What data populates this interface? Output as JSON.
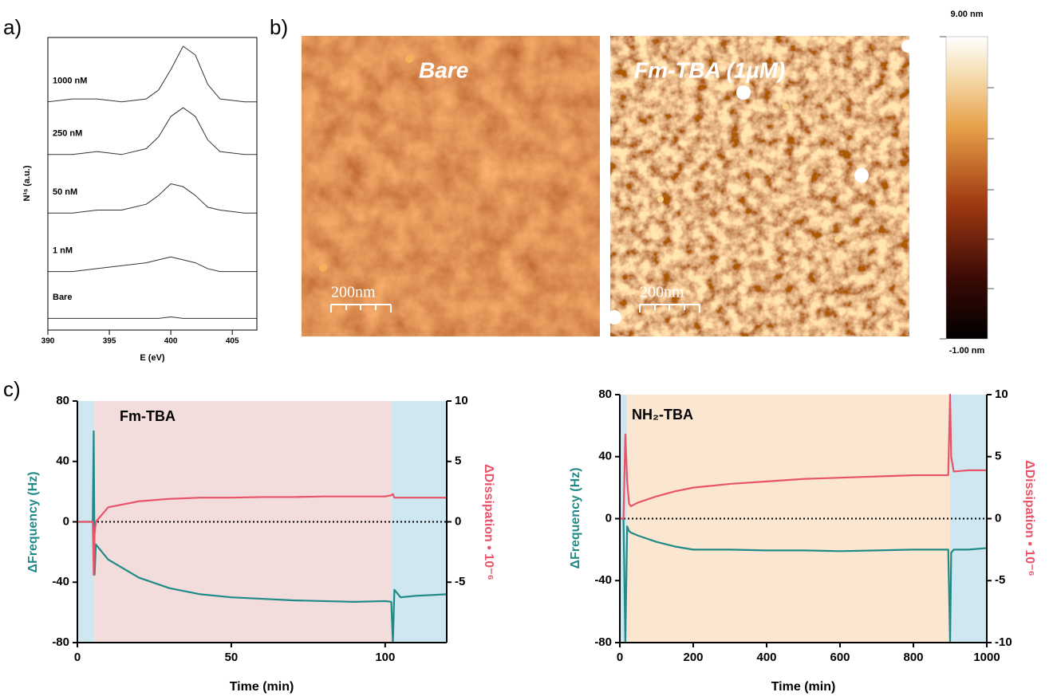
{
  "panel_labels": [
    "a)",
    "b)",
    "c)"
  ],
  "afm": {
    "images": [
      {
        "label": "Bare",
        "scale_bar": "200nm"
      },
      {
        "label": "Fm-TBA (1µM)",
        "scale_bar": "200nm"
      }
    ],
    "colorbar": {
      "max_label": "9.00 nm",
      "min_label": "-1.00 nm"
    }
  },
  "chart_data": [
    {
      "type": "line",
      "xlabel": "E (eV)",
      "ylabel": "N¹ˢ (a.u.)",
      "x": [
        390,
        392,
        394,
        396,
        398,
        399,
        400,
        401,
        402,
        403,
        404,
        406,
        407
      ],
      "xlim": [
        390,
        407
      ],
      "xticks": [
        390,
        395,
        400,
        405
      ],
      "ylim": [
        0,
        10
      ],
      "series": [
        {
          "name": "1000 nM",
          "color": "#333333",
          "values": [
            7.8,
            7.9,
            7.9,
            7.8,
            7.9,
            8.2,
            8.9,
            9.7,
            9.4,
            8.4,
            7.9,
            7.8,
            7.8
          ]
        },
        {
          "name": "250 nM",
          "color": "#333333",
          "values": [
            6.0,
            6.0,
            6.1,
            6.0,
            6.2,
            6.6,
            7.3,
            7.6,
            7.3,
            6.5,
            6.1,
            6.0,
            6.0
          ]
        },
        {
          "name": "50 nM",
          "color": "#333333",
          "values": [
            4.0,
            4.0,
            4.1,
            4.1,
            4.3,
            4.6,
            5.0,
            4.9,
            4.6,
            4.2,
            4.1,
            4.0,
            4.0
          ]
        },
        {
          "name": "1 nM",
          "color": "#333333",
          "values": [
            2.0,
            2.0,
            2.1,
            2.2,
            2.3,
            2.4,
            2.5,
            2.4,
            2.3,
            2.1,
            2.0,
            2.0,
            2.0
          ]
        },
        {
          "name": "Bare",
          "color": "#333333",
          "values": [
            0.4,
            0.4,
            0.4,
            0.4,
            0.4,
            0.4,
            0.45,
            0.4,
            0.4,
            0.4,
            0.4,
            0.4,
            0.4
          ]
        }
      ]
    },
    {
      "type": "line",
      "title": "Fm-TBA",
      "xlabel": "Time (min)",
      "ylabel": "ΔFrequency (Hz)",
      "y2label": "ΔDissipation • 10⁻⁶",
      "x": [
        0,
        5,
        5.3,
        5.6,
        6,
        10,
        20,
        30,
        40,
        50,
        60,
        70,
        80,
        90,
        100,
        102,
        102.5,
        103,
        105,
        110,
        120
      ],
      "xlim": [
        0,
        120
      ],
      "xticks": [
        0,
        50,
        100
      ],
      "ylim": [
        -80,
        80
      ],
      "yticks": [
        -80,
        -40,
        0,
        40,
        80
      ],
      "y2lim": [
        -10,
        10
      ],
      "y2ticks": [
        -5,
        0,
        5,
        10
      ],
      "hline": 0,
      "regions": [
        {
          "start": 0,
          "end": 5.5,
          "color": "#cfe7f1"
        },
        {
          "start": 5.5,
          "end": 102,
          "color": "#f3dcdc"
        },
        {
          "start": 102,
          "end": 120,
          "color": "#cfe7f1"
        }
      ],
      "series": [
        {
          "color": "#1f8a87",
          "values": [
            0,
            0,
            60,
            -35,
            -15,
            -25,
            -37,
            -44,
            -48,
            -50,
            -51,
            -52,
            -52.5,
            -53,
            -52.5,
            -53,
            -80,
            -45,
            -50,
            -49,
            -48
          ]
        },
        {
          "color": "#e8546a",
          "axis": "y2",
          "values": [
            0,
            0,
            -4.4,
            -1,
            0,
            1.2,
            1.7,
            1.9,
            2,
            2,
            2.05,
            2.05,
            2.1,
            2.1,
            2.1,
            2.2,
            2.3,
            2,
            2,
            2,
            2
          ]
        }
      ]
    },
    {
      "type": "line",
      "title": "NH₂-TBA",
      "xlabel": "Time (min)",
      "ylabel": "ΔFrequency (Hz)",
      "y2label": "ΔDissipation • 10⁻⁶",
      "x": [
        0,
        10,
        15,
        20,
        25,
        30,
        50,
        100,
        150,
        200,
        300,
        400,
        500,
        600,
        700,
        800,
        895,
        900,
        903,
        910,
        950,
        1000
      ],
      "xlim": [
        0,
        1000
      ],
      "xticks": [
        0,
        200,
        400,
        600,
        800,
        1000
      ],
      "ylim": [
        -80,
        80
      ],
      "yticks": [
        -80,
        -40,
        0,
        40,
        80
      ],
      "y2lim": [
        -10,
        10
      ],
      "y2ticks": [
        -10,
        -5,
        0,
        5,
        10
      ],
      "hline": 0,
      "regions": [
        {
          "start": 0,
          "end": 20,
          "color": "#cfe7f1"
        },
        {
          "start": 20,
          "end": 900,
          "color": "#fbe6d2"
        },
        {
          "start": 900,
          "end": 1000,
          "color": "#cfe7f1"
        }
      ],
      "series": [
        {
          "color": "#1f8a87",
          "values": [
            0,
            0,
            -80,
            -5,
            -8,
            -9,
            -11,
            -15,
            -18,
            -20,
            -20,
            -20.5,
            -20.5,
            -21,
            -20.5,
            -20,
            -20,
            -80,
            -22,
            -20,
            -20,
            -19
          ]
        },
        {
          "color": "#e8546a",
          "axis": "y2",
          "values": [
            0,
            0,
            6.8,
            3,
            1.2,
            1,
            1.3,
            1.8,
            2.2,
            2.5,
            2.8,
            3,
            3.2,
            3.3,
            3.4,
            3.5,
            3.5,
            10,
            5,
            3.8,
            3.9,
            3.9
          ]
        }
      ]
    }
  ]
}
